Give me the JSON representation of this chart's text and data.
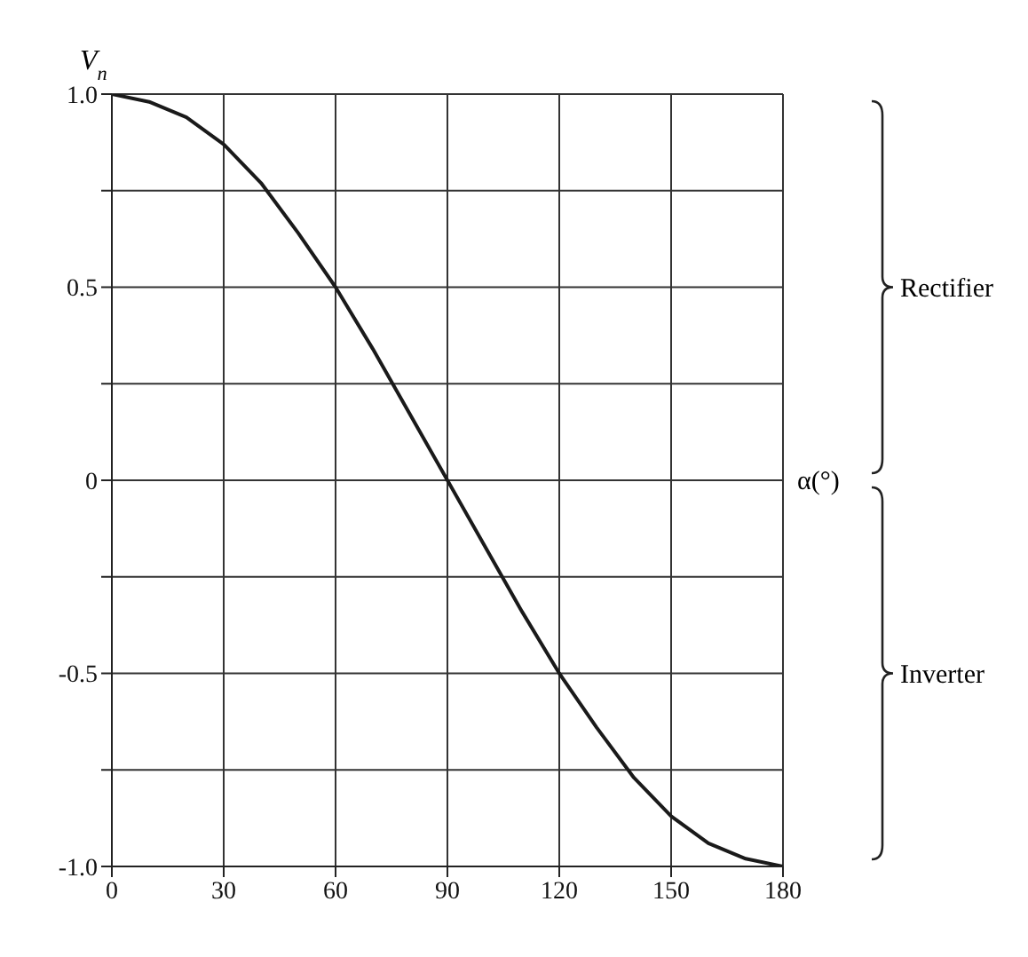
{
  "chart_data": {
    "type": "line",
    "xlabel": "α(°)",
    "ylabel": "V$_{n}$",
    "x": [
      0,
      10,
      20,
      30,
      40,
      50,
      60,
      70,
      80,
      90,
      100,
      110,
      120,
      130,
      140,
      150,
      160,
      170,
      180
    ],
    "series": [
      {
        "color": "#1a1a1a",
        "values": [
          1,
          0.98,
          0.94,
          0.87,
          0.77,
          0.64,
          0.5,
          0.34,
          0.17,
          0,
          -0.17,
          -0.34,
          -0.5,
          -0.64,
          -0.77,
          -0.87,
          -0.94,
          -0.98,
          -1
        ]
      }
    ],
    "xlim": [
      0,
      180
    ],
    "xticks": [
      0,
      30,
      60,
      90,
      120,
      150,
      180
    ],
    "ylim": [
      -1,
      1
    ],
    "yticks": [
      {
        "value": -1,
        "label": "-1.0"
      },
      {
        "value": -0.75,
        "label": null
      },
      {
        "value": -0.5,
        "label": "-0.5"
      },
      {
        "value": -0.25,
        "label": null
      },
      {
        "value": 0,
        "label": "0"
      },
      {
        "value": 0.25,
        "label": null
      },
      {
        "value": 0.5,
        "label": "0.5"
      },
      {
        "value": 0.75,
        "label": null
      },
      {
        "value": 1,
        "label": "1.0"
      }
    ],
    "grid": true,
    "marker": "none",
    "line_style": "solid",
    "annotations": [
      "Rectifier",
      "Inverter"
    ]
  }
}
